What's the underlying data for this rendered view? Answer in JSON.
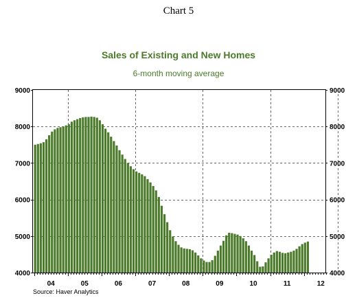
{
  "page_title": "Chart 5",
  "source": "Source: Haver Analytics",
  "chart_data": {
    "type": "bar",
    "title": "Sales of Existing and New Homes",
    "subtitle": "6-month moving average",
    "xlabel": "",
    "ylabel": "",
    "ylim": [
      4000,
      9000
    ],
    "yticks": [
      9000,
      8000,
      7000,
      6000,
      5000,
      4000
    ],
    "ytick_labels": [
      "9000",
      "8000",
      "7000",
      "6000",
      "5000",
      "4000"
    ],
    "xtick_labels": [
      "04",
      "05",
      "06",
      "07",
      "08",
      "09",
      "10",
      "11",
      "12"
    ],
    "grid": true,
    "bar_color": "#4a7a2a",
    "title_color": "#4a7a2a",
    "x_start": "2004-01",
    "frequency": "monthly",
    "values": [
      7500,
      7520,
      7540,
      7570,
      7650,
      7760,
      7860,
      7920,
      7960,
      7980,
      8000,
      8030,
      8060,
      8130,
      8170,
      8200,
      8230,
      8250,
      8260,
      8260,
      8270,
      8260,
      8240,
      8170,
      8060,
      7940,
      7840,
      7720,
      7600,
      7480,
      7350,
      7230,
      7110,
      7000,
      6910,
      6830,
      6770,
      6730,
      6690,
      6640,
      6560,
      6470,
      6370,
      6250,
      6070,
      5830,
      5600,
      5380,
      5160,
      4990,
      4860,
      4760,
      4690,
      4660,
      4650,
      4640,
      4610,
      4550,
      4470,
      4390,
      4330,
      4290,
      4290,
      4340,
      4460,
      4600,
      4740,
      4870,
      5020,
      5090,
      5080,
      5060,
      5040,
      5000,
      4940,
      4860,
      4740,
      4600,
      4480,
      4310,
      4160,
      4170,
      4280,
      4390,
      4490,
      4550,
      4590,
      4570,
      4540,
      4530,
      4550,
      4570,
      4600,
      4650,
      4720,
      4780,
      4820,
      4850
    ]
  }
}
